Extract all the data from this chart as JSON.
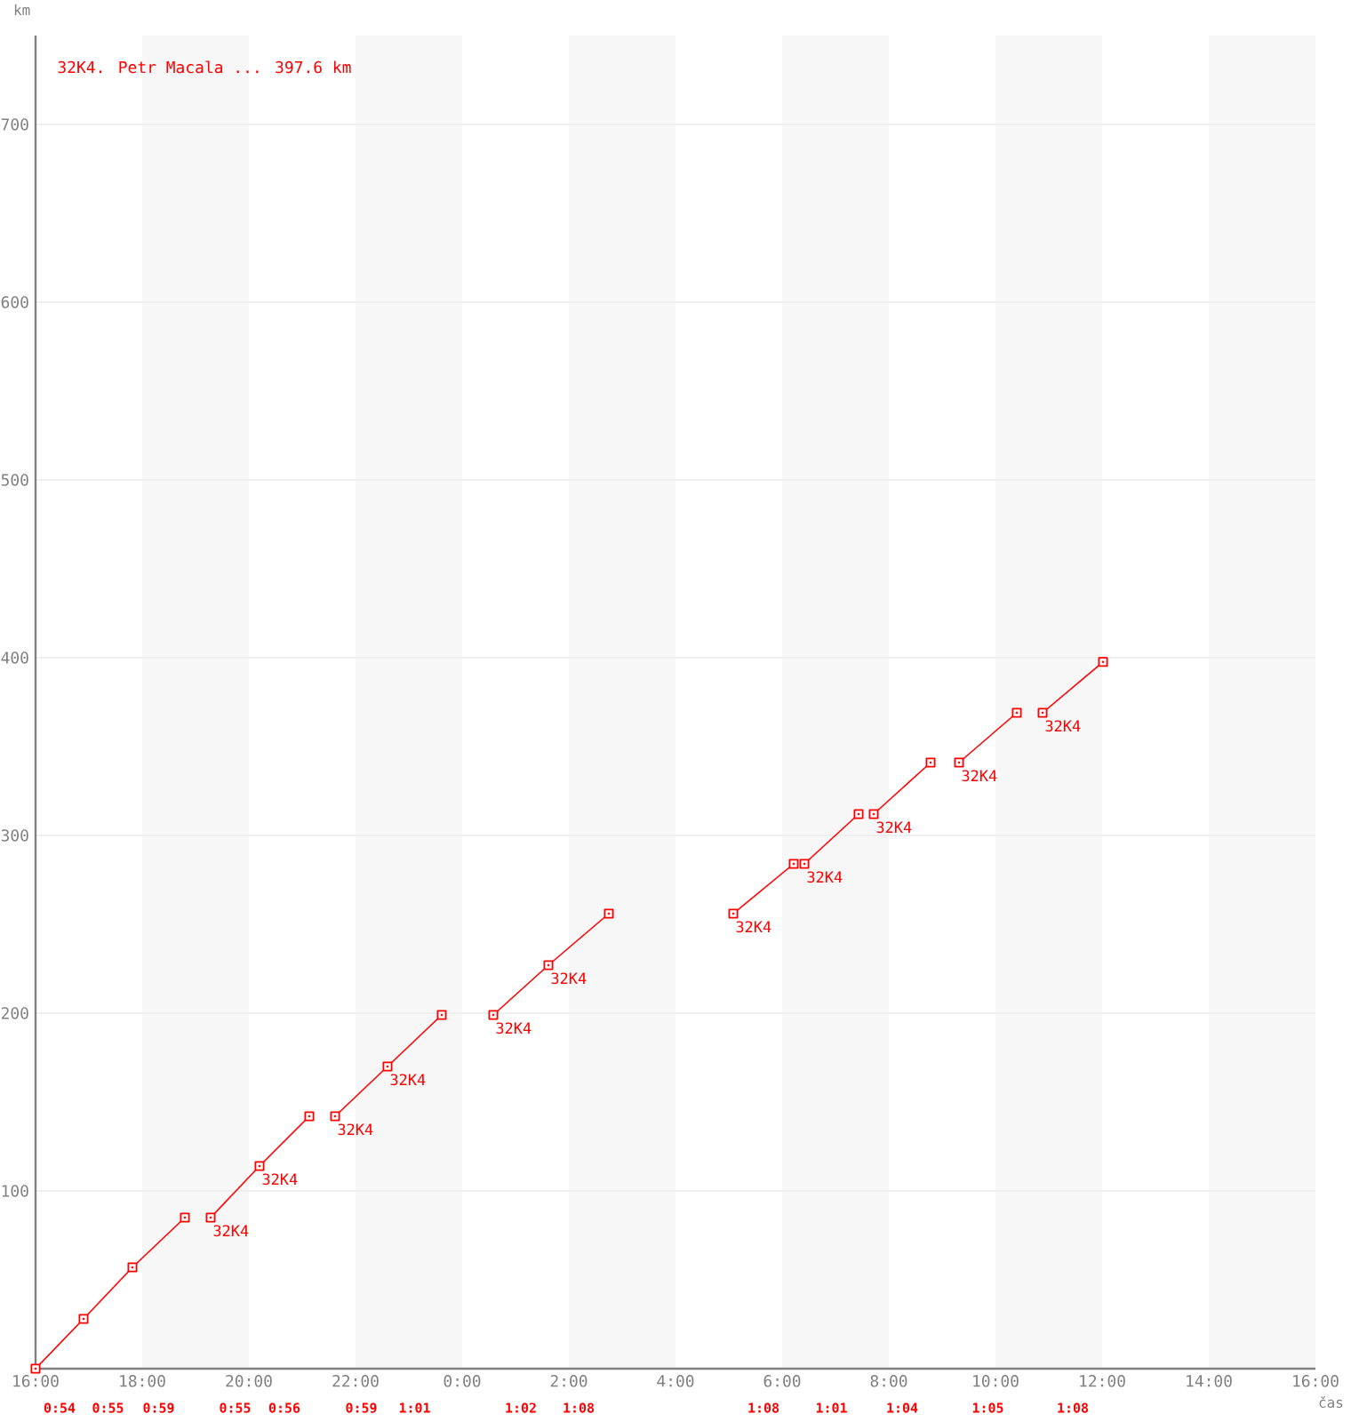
{
  "chart_data": {
    "type": "line",
    "xlabel": "čas",
    "ylabel": "km",
    "series": [
      {
        "name": "32K4. Petr Macala ... 397.6 km",
        "color": "#ff0000",
        "x": [
          "2000-01-01T16:00",
          "2000-01-01T16:54",
          "2000-01-01T17:49",
          "2000-01-01T18:48"
        ],
        "values": [
          0,
          28,
          57,
          85
        ]
      },
      {
        "color": "#ff0000",
        "x": [
          "2000-01-01T19:17",
          "2000-01-01T20:12",
          "2000-01-01T21:08"
        ],
        "values": [
          85,
          114,
          142
        ]
      },
      {
        "color": "#ff0000",
        "x": [
          "2000-01-01T21:37",
          "2000-01-01T22:36",
          "2000-01-01T23:37"
        ],
        "values": [
          142,
          170,
          199
        ]
      },
      {
        "color": "#ff0000",
        "x": [
          "2000-01-02T00:35",
          "2000-01-02T01:37",
          "2000-01-02T02:45"
        ],
        "values": [
          199,
          227,
          256
        ]
      },
      {
        "color": "#ff0000",
        "x": [
          "2000-01-02T05:05",
          "2000-01-02T06:13"
        ],
        "values": [
          256,
          284
        ]
      },
      {
        "color": "#ff0000",
        "x": [
          "2000-01-02T06:25",
          "2000-01-02T07:26"
        ],
        "values": [
          284,
          312
        ]
      },
      {
        "color": "#ff0000",
        "x": [
          "2000-01-02T07:43",
          "2000-01-02T08:47"
        ],
        "values": [
          312,
          341
        ]
      },
      {
        "color": "#ff0000",
        "x": [
          "2000-01-02T09:19",
          "2000-01-02T10:24"
        ],
        "values": [
          341,
          369
        ]
      },
      {
        "color": "#ff0000",
        "x": [
          "2000-01-02T10:53",
          "2000-01-02T12:01"
        ],
        "values": [
          369,
          397.6
        ]
      }
    ],
    "xlim": [
      "2000-01-01T16:00",
      "2000-01-02T16:00"
    ],
    "ylim": [
      0,
      750
    ],
    "xticks": [
      {
        "value": "2000-01-01T16:00",
        "label": "16:00"
      },
      {
        "value": "2000-01-01T18:00",
        "label": "18:00"
      },
      {
        "value": "2000-01-01T20:00",
        "label": "20:00"
      },
      {
        "value": "2000-01-01T22:00",
        "label": "22:00"
      },
      {
        "value": "2000-01-02T00:00",
        "label": "0:00"
      },
      {
        "value": "2000-01-02T02:00",
        "label": "2:00"
      },
      {
        "value": "2000-01-02T04:00",
        "label": "4:00"
      },
      {
        "value": "2000-01-02T06:00",
        "label": "6:00"
      },
      {
        "value": "2000-01-02T08:00",
        "label": "8:00"
      },
      {
        "value": "2000-01-02T10:00",
        "label": "10:00"
      },
      {
        "value": "2000-01-02T12:00",
        "label": "12:00"
      },
      {
        "value": "2000-01-02T14:00",
        "label": "14:00"
      },
      {
        "value": "2000-01-02T16:00",
        "label": "16:00"
      }
    ],
    "yticks": [
      100,
      200,
      300,
      400,
      500,
      600,
      700
    ],
    "grid": "y",
    "legend": "top left",
    "marker": "square",
    "line_style": "solid",
    "bands": [
      {
        "axis": "x",
        "from": "2000-01-01T18:00",
        "to": "2000-01-01T20:00",
        "color": "#f7f7f7"
      },
      {
        "axis": "x",
        "from": "2000-01-01T22:00",
        "to": "2000-01-02T00:00",
        "color": "#f7f7f7"
      },
      {
        "axis": "x",
        "from": "2000-01-02T02:00",
        "to": "2000-01-02T04:00",
        "color": "#f7f7f7"
      },
      {
        "axis": "x",
        "from": "2000-01-02T06:00",
        "to": "2000-01-02T08:00",
        "color": "#f7f7f7"
      },
      {
        "axis": "x",
        "from": "2000-01-02T10:00",
        "to": "2000-01-02T12:00",
        "color": "#f7f7f7"
      },
      {
        "axis": "x",
        "from": "2000-01-02T14:00",
        "to": "2000-01-02T16:00",
        "color": "#f7f7f7"
      }
    ],
    "annotations": [
      {
        "text": "32K4",
        "x": "2000-01-01T19:17",
        "y": 85
      },
      {
        "text": "32K4",
        "x": "2000-01-01T20:12",
        "y": 114
      },
      {
        "text": "32K4",
        "x": "2000-01-01T21:37",
        "y": 142
      },
      {
        "text": "32K4",
        "x": "2000-01-01T22:36",
        "y": 170
      },
      {
        "text": "32K4",
        "x": "2000-01-02T00:35",
        "y": 199
      },
      {
        "text": "32K4",
        "x": "2000-01-02T01:37",
        "y": 227
      },
      {
        "text": "32K4",
        "x": "2000-01-02T05:05",
        "y": 256
      },
      {
        "text": "32K4",
        "x": "2000-01-02T06:25",
        "y": 284
      },
      {
        "text": "32K4",
        "x": "2000-01-02T07:43",
        "y": 312
      },
      {
        "text": "32K4",
        "x": "2000-01-02T09:19",
        "y": 341
      },
      {
        "text": "32K4",
        "x": "2000-01-02T10:53",
        "y": 369
      },
      "0:54",
      "0:55",
      "0:59",
      "0:55",
      "0:56",
      "0:59",
      "1:01",
      "1:02",
      "1:08",
      "1:08",
      "1:01",
      "1:04",
      "1:05",
      "1:08"
    ]
  }
}
